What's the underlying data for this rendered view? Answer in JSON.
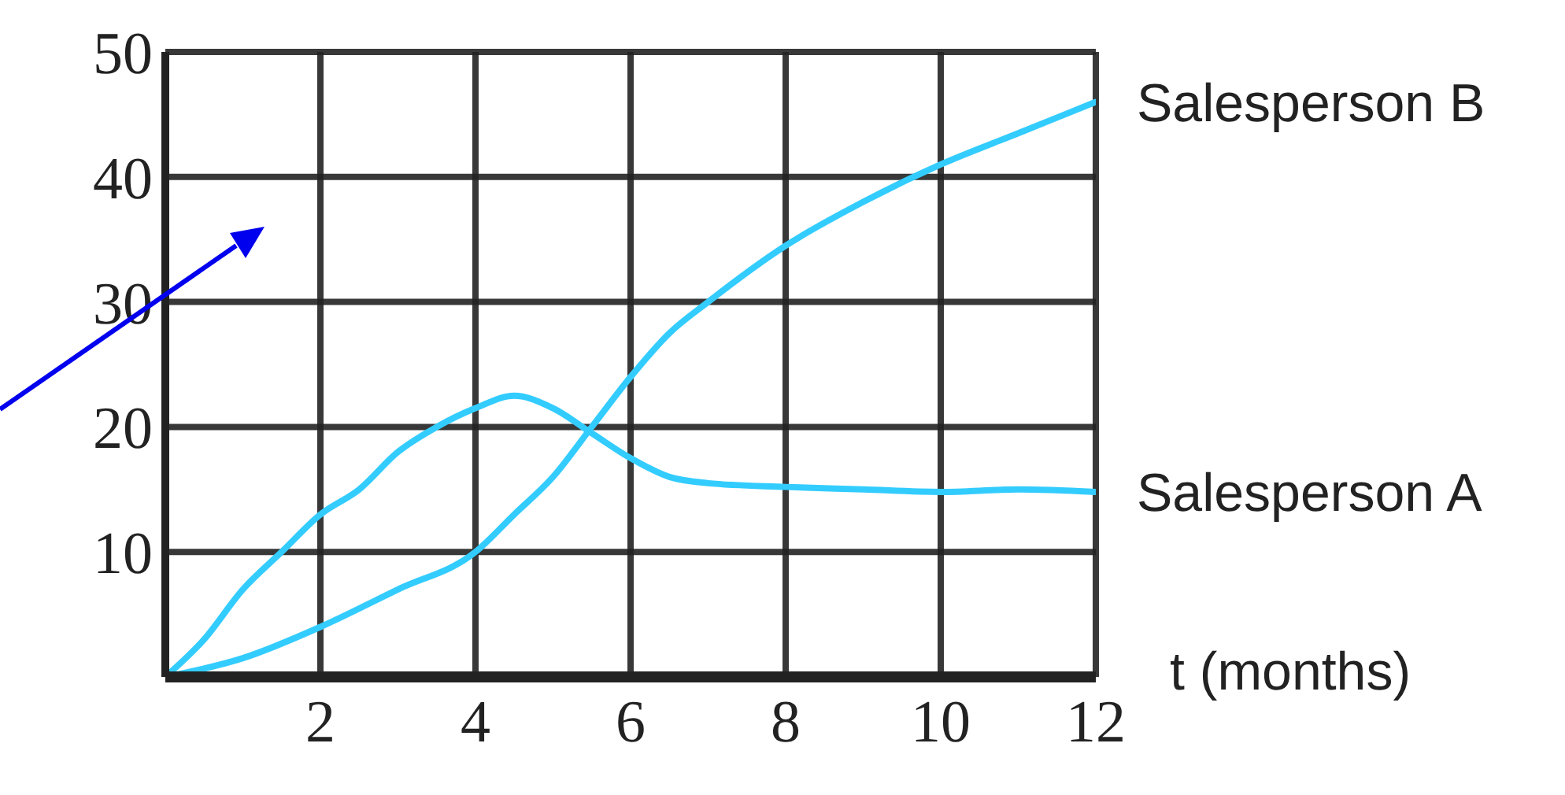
{
  "chart_data": {
    "type": "line",
    "xlabel": "t (months)",
    "xlim": [
      0,
      12
    ],
    "xticks": [
      2,
      4,
      6,
      8,
      10,
      12
    ],
    "ylim": [
      0,
      50
    ],
    "yticks": [
      10,
      20,
      30,
      40,
      50
    ],
    "grid": true,
    "marker": "none",
    "line_style": "solid",
    "series": [
      {
        "name": "Salesperson B",
        "color": "#33ccff",
        "x": [
          0,
          1,
          2,
          3,
          4,
          4.5,
          5,
          5.5,
          6,
          6.5,
          7,
          8,
          9,
          10,
          11,
          12
        ],
        "values": [
          0,
          1.5,
          4,
          7,
          10,
          13,
          16,
          20,
          24,
          27.5,
          30,
          34.5,
          38,
          41,
          43.5,
          46
        ]
      },
      {
        "name": "Salesperson A",
        "color": "#33ccff",
        "x": [
          0,
          0.5,
          1,
          1.5,
          2,
          2.5,
          3,
          3.5,
          4,
          4.5,
          5,
          5.5,
          6,
          6.5,
          7,
          8,
          9,
          10,
          11,
          12
        ],
        "values": [
          0,
          3,
          7,
          10,
          13,
          15,
          18,
          20,
          21.5,
          22.5,
          21.5,
          19.5,
          17.5,
          16,
          15.5,
          15.2,
          15,
          14.8,
          15,
          14.8
        ]
      }
    ]
  }
}
